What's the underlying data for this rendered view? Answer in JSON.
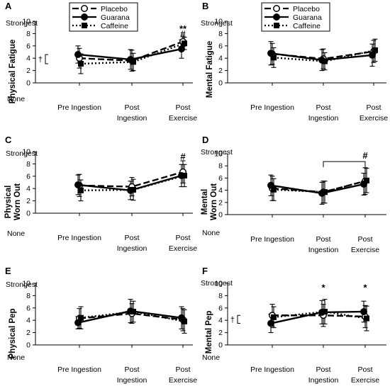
{
  "series_styles": [
    {
      "name": "Placebo",
      "dash": "dashed",
      "marker": "open-circle"
    },
    {
      "name": "Guarana",
      "dash": "solid",
      "marker": "filled-circle"
    },
    {
      "name": "Caffeine",
      "dash": "dotted",
      "marker": "filled-square"
    }
  ],
  "chart_data": [
    {
      "type": "line",
      "panel": "A",
      "ylabel": "Physical Fatigue",
      "categories": [
        "Pre Ingestion",
        "Post\nIngestion",
        "Post\nExercise"
      ],
      "ylim": [
        0,
        10
      ],
      "yticks": [
        0,
        2,
        4,
        6,
        8,
        10
      ],
      "ytick_labels": [
        "0",
        "2",
        "4",
        "6",
        "8",
        "10"
      ],
      "y_text_top": "Strongest",
      "y_text_bottom": "None",
      "legend": true,
      "series": [
        {
          "name": "Placebo",
          "values": [
            4.0,
            3.6,
            6.7
          ],
          "errors": [
            1.6,
            1.7,
            0.8
          ]
        },
        {
          "name": "Guarana",
          "values": [
            4.6,
            3.8,
            5.5
          ],
          "errors": [
            1.4,
            1.6,
            1.5
          ]
        },
        {
          "name": "Caffeine",
          "values": [
            3.1,
            3.4,
            6.4
          ],
          "errors": [
            1.6,
            1.4,
            1.0
          ]
        }
      ],
      "annotations": [
        {
          "text": "**",
          "x": 2,
          "y": 8.3
        },
        {
          "text": "#",
          "x": 2,
          "y": 7.4
        },
        {
          "text": "†",
          "x": -0.3,
          "y": 3.7,
          "bracket": [
            3.1,
            4.6
          ]
        }
      ]
    },
    {
      "type": "line",
      "panel": "B",
      "ylabel": "Mental Fatigue",
      "categories": [
        "Pre Ingestion",
        "Post\nIngestion",
        "Post\nExercise"
      ],
      "ylim": [
        0,
        10
      ],
      "yticks": [
        0,
        2,
        4,
        6,
        8,
        10
      ],
      "ytick_labels": [
        "0",
        "2",
        "4",
        "6",
        "8",
        "10"
      ],
      "y_text_top": "Strongest",
      "y_text_bottom": "None",
      "legend": true,
      "series": [
        {
          "name": "Placebo",
          "values": [
            4.7,
            3.9,
            5.1
          ],
          "errors": [
            1.7,
            1.6,
            1.8
          ]
        },
        {
          "name": "Guarana",
          "values": [
            4.8,
            3.7,
            4.5
          ],
          "errors": [
            1.9,
            1.7,
            1.8
          ]
        },
        {
          "name": "Caffeine",
          "values": [
            4.1,
            3.5,
            5.3
          ],
          "errors": [
            1.6,
            1.4,
            1.8
          ]
        }
      ],
      "annotations": []
    },
    {
      "type": "line",
      "panel": "C",
      "ylabel": "Physical\nWorn Out",
      "categories": [
        "Pre Ingestion",
        "Post\nIngestion",
        "Post\nExercise"
      ],
      "ylim": [
        0,
        10
      ],
      "yticks": [
        0,
        2,
        4,
        6,
        8,
        10
      ],
      "ytick_labels": [
        "0",
        "2",
        "4",
        "6",
        "8",
        "10"
      ],
      "y_text_top": "Strongest",
      "y_text_bottom": "None",
      "legend": false,
      "series": [
        {
          "name": "Placebo",
          "values": [
            4.5,
            4.3,
            6.7
          ],
          "errors": [
            1.8,
            1.5,
            1.8
          ]
        },
        {
          "name": "Guarana",
          "values": [
            4.6,
            3.7,
            6.1
          ],
          "errors": [
            1.6,
            1.5,
            1.8
          ]
        },
        {
          "name": "Caffeine",
          "values": [
            3.7,
            3.8,
            6.1
          ],
          "errors": [
            1.7,
            1.7,
            1.8
          ]
        }
      ],
      "annotations": [
        {
          "text": "#",
          "x": 2,
          "y": 8.7
        }
      ]
    },
    {
      "type": "line",
      "panel": "D",
      "ylabel": "Mental\nWorn Out",
      "categories": [
        "Pre Ingestion",
        "Post\nIngestion",
        "Post\nExercise"
      ],
      "ylim": [
        0,
        10
      ],
      "yticks": [
        0,
        2,
        4,
        6,
        8,
        10
      ],
      "ytick_labels": [
        "0",
        "2",
        "4",
        "6",
        "8",
        "10"
      ],
      "y_text_top": "Strongest",
      "y_text_bottom": "None",
      "legend": false,
      "series": [
        {
          "name": "Placebo",
          "values": [
            4.3,
            3.7,
            5.5
          ],
          "errors": [
            2.0,
            1.8,
            2.2
          ]
        },
        {
          "name": "Guarana",
          "values": [
            4.8,
            3.5,
            5.0
          ],
          "errors": [
            1.7,
            1.8,
            1.8
          ]
        },
        {
          "name": "Caffeine",
          "values": [
            4.1,
            3.7,
            5.6
          ],
          "errors": [
            1.8,
            1.8,
            2.0
          ]
        }
      ],
      "annotations": [
        {
          "text": "#",
          "x": 2,
          "y": 9.2,
          "span": [
            1,
            2
          ],
          "bracket_y": 8.7
        }
      ]
    },
    {
      "type": "line",
      "panel": "E",
      "ylabel": "Physical Pep",
      "categories": [
        "Pre Ingestion",
        "Post\nIngestion",
        "Post\nExercise"
      ],
      "ylim": [
        0,
        10
      ],
      "yticks": [
        0,
        2,
        4,
        6,
        8,
        10
      ],
      "ytick_labels": [
        "0",
        "2",
        "4",
        "6",
        "8",
        "10"
      ],
      "y_text_top": "Strongest",
      "y_text_bottom": "None",
      "legend": false,
      "series": [
        {
          "name": "Placebo",
          "values": [
            4.3,
            5.1,
            4.1
          ],
          "errors": [
            1.6,
            1.6,
            1.8
          ]
        },
        {
          "name": "Guarana",
          "values": [
            3.6,
            5.5,
            4.4
          ],
          "errors": [
            1.0,
            1.9,
            1.8
          ]
        },
        {
          "name": "Caffeine",
          "values": [
            4.4,
            5.4,
            3.8
          ],
          "errors": [
            1.8,
            1.7,
            1.9
          ]
        }
      ],
      "annotations": []
    },
    {
      "type": "line",
      "panel": "F",
      "ylabel": "Mental Pep",
      "categories": [
        "Pre Ingestion",
        "Post\nIngestion",
        "Post\nExercise"
      ],
      "ylim": [
        0,
        10
      ],
      "yticks": [
        0,
        2,
        4,
        6,
        8,
        10
      ],
      "ytick_labels": [
        "0",
        "2",
        "4",
        "6",
        "8",
        "10"
      ],
      "y_text_top": "Strongest",
      "y_text_bottom": "None",
      "legend": false,
      "series": [
        {
          "name": "Placebo",
          "values": [
            4.8,
            4.8,
            4.6
          ],
          "errors": [
            1.8,
            1.8,
            1.8
          ]
        },
        {
          "name": "Guarana",
          "values": [
            3.5,
            5.3,
            5.4
          ],
          "errors": [
            1.5,
            1.9,
            1.7
          ]
        },
        {
          "name": "Caffeine",
          "values": [
            4.5,
            5.4,
            4.3
          ],
          "errors": [
            1.7,
            2.0,
            2.0
          ]
        }
      ],
      "annotations": [
        {
          "text": "*",
          "x": 1,
          "y": 8.8
        },
        {
          "text": "*",
          "x": 2,
          "y": 8.8
        },
        {
          "text": "†",
          "x": -0.3,
          "y": 4.2,
          "bracket": [
            3.5,
            4.8
          ]
        }
      ]
    }
  ]
}
